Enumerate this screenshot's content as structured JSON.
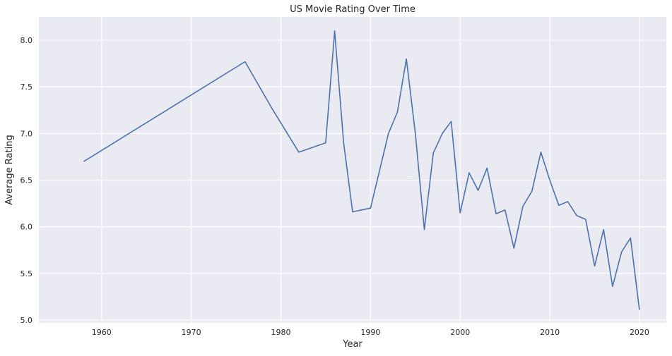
{
  "chart_data": {
    "type": "line",
    "title": "US Movie Rating Over Time",
    "xlabel": "Year",
    "ylabel": "Average Rating",
    "xlim": [
      1953,
      2023
    ],
    "ylim": [
      4.97,
      8.25
    ],
    "xticks": [
      1960,
      1970,
      1980,
      1990,
      2000,
      2010,
      2020
    ],
    "yticks": [
      5.0,
      5.5,
      6.0,
      6.5,
      7.0,
      7.5,
      8.0
    ],
    "ytick_labels": [
      "5.0",
      "5.5",
      "6.0",
      "6.5",
      "7.0",
      "7.5",
      "8.0"
    ],
    "grid": true,
    "series": [
      {
        "color": "#4c72b0",
        "x": [
          1958,
          1976,
          1979,
          1982,
          1985,
          1986,
          1987,
          1988,
          1990,
          1992,
          1993,
          1994,
          1995,
          1996,
          1997,
          1998,
          1999,
          2000,
          2001,
          2002,
          2003,
          2004,
          2005,
          2006,
          2007,
          2008,
          2009,
          2010,
          2011,
          2012,
          2013,
          2014,
          2015,
          2016,
          2017,
          2018,
          2019,
          2020
        ],
        "values": [
          6.7,
          7.77,
          7.27,
          6.8,
          6.9,
          8.1,
          6.9,
          6.16,
          6.2,
          7.0,
          7.23,
          7.8,
          7.0,
          5.97,
          6.79,
          7.0,
          7.13,
          6.15,
          6.58,
          6.39,
          6.63,
          6.14,
          6.18,
          5.77,
          6.22,
          6.38,
          6.8,
          6.5,
          6.23,
          6.27,
          6.12,
          6.08,
          5.58,
          5.97,
          5.36,
          5.73,
          5.88,
          5.11
        ]
      }
    ]
  },
  "style": {
    "background": "#ffffff",
    "plot_background": "#eaeaf2",
    "grid_color": "#ffffff",
    "text_color": "#262626"
  }
}
